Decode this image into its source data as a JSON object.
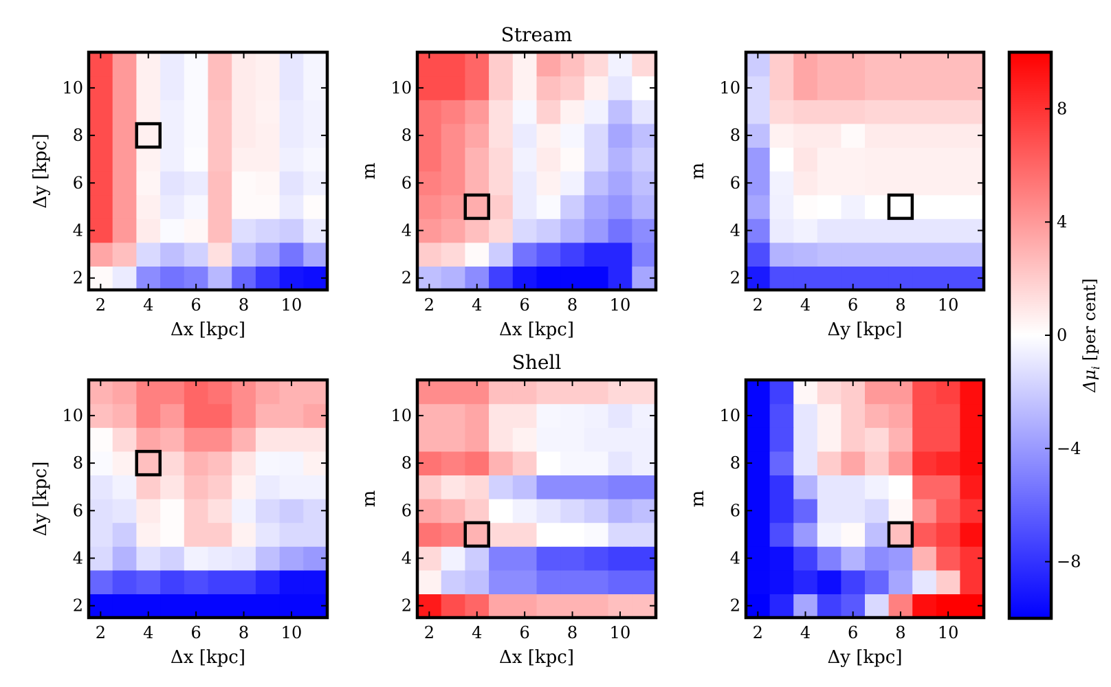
{
  "chart_data": [
    {
      "type": "heatmap",
      "title": "",
      "xlabel": "Δx [kpc]",
      "ylabel": "Δy [kpc]",
      "x_values": [
        2,
        3,
        4,
        5,
        6,
        7,
        8,
        9,
        10,
        11
      ],
      "y_values": [
        2,
        3,
        4,
        5,
        6,
        7,
        8,
        9,
        10,
        11
      ],
      "xticks": [
        2,
        4,
        6,
        8,
        10
      ],
      "yticks": [
        2,
        4,
        6,
        8,
        10
      ],
      "marker": {
        "x": 4,
        "y": 8
      },
      "z": [
        [
          0.2,
          -0.8,
          -4.5,
          -5.5,
          -5.0,
          -2.8,
          -6.0,
          -7.8,
          -9.2,
          -9.5
        ],
        [
          3.5,
          2.5,
          -1.5,
          -2.5,
          -1.8,
          1.2,
          -2.5,
          -3.6,
          -5.4,
          -3.4
        ],
        [
          7.0,
          4.0,
          0.8,
          -0.2,
          0.3,
          2.6,
          -1.3,
          -1.7,
          -2.0,
          -0.8
        ],
        [
          7.0,
          4.0,
          0.6,
          -0.8,
          -0.3,
          2.6,
          0.2,
          0.2,
          -0.8,
          0.1
        ],
        [
          7.0,
          4.0,
          0.4,
          -1.1,
          -0.8,
          2.6,
          0.2,
          0.3,
          -1.1,
          -0.6
        ],
        [
          7.0,
          4.0,
          0.5,
          -0.6,
          -0.1,
          2.4,
          0.6,
          0.6,
          -0.6,
          -0.3
        ],
        [
          7.0,
          4.0,
          0.6,
          -0.6,
          -0.2,
          2.4,
          0.8,
          0.6,
          -0.8,
          -0.5
        ],
        [
          7.0,
          4.0,
          0.6,
          -0.6,
          -0.2,
          2.4,
          0.8,
          0.5,
          -0.8,
          -0.5
        ],
        [
          7.0,
          4.0,
          0.6,
          -0.8,
          -0.2,
          2.6,
          0.8,
          0.6,
          -1.0,
          -0.4
        ],
        [
          7.0,
          4.0,
          0.6,
          -0.8,
          -0.2,
          2.6,
          0.8,
          0.6,
          -1.0,
          -0.4
        ]
      ]
    },
    {
      "type": "heatmap",
      "title": "Stream",
      "xlabel": "Δx [kpc]",
      "ylabel": "m",
      "x_values": [
        2,
        3,
        4,
        5,
        6,
        7,
        8,
        9,
        10,
        11
      ],
      "y_values": [
        2,
        3,
        4,
        5,
        6,
        7,
        8,
        9,
        10,
        11
      ],
      "xticks": [
        2,
        4,
        6,
        8,
        10
      ],
      "yticks": [
        2,
        4,
        6,
        8,
        10
      ],
      "marker": {
        "x": 4,
        "y": 5
      },
      "z": [
        [
          -2.5,
          -3.0,
          -4.5,
          -7.5,
          -9.2,
          -9.8,
          -9.8,
          -9.8,
          -8.5,
          -3.5
        ],
        [
          2.0,
          1.5,
          0.2,
          -2.0,
          -5.5,
          -6.5,
          -7.5,
          -8.5,
          -8.5,
          -5.0
        ],
        [
          4.0,
          3.5,
          2.5,
          1.5,
          -1.5,
          -2.0,
          -3.0,
          -4.0,
          -5.5,
          -4.5
        ],
        [
          4.5,
          4.0,
          3.2,
          2.0,
          -0.8,
          -0.2,
          -2.0,
          -3.5,
          -4.2,
          -3.0
        ],
        [
          5.0,
          4.5,
          3.0,
          1.5,
          -0.8,
          0.5,
          -0.5,
          -2.5,
          -3.5,
          -2.5
        ],
        [
          5.5,
          4.5,
          3.0,
          1.5,
          -0.5,
          0.8,
          0.2,
          -1.5,
          -3.0,
          -2.0
        ],
        [
          5.5,
          4.5,
          3.5,
          1.2,
          -0.8,
          0.5,
          -0.3,
          -1.5,
          -3.5,
          -2.5
        ],
        [
          5.5,
          5.0,
          4.0,
          1.2,
          -0.3,
          1.8,
          0.5,
          -0.5,
          -2.5,
          -1.0
        ],
        [
          7.0,
          7.0,
          6.0,
          2.0,
          0.5,
          2.5,
          2.0,
          0.6,
          -1.0,
          0.0
        ],
        [
          7.0,
          7.0,
          6.0,
          2.0,
          0.5,
          3.5,
          2.5,
          1.5,
          -0.5,
          1.5
        ]
      ]
    },
    {
      "type": "heatmap",
      "title": "",
      "xlabel": "Δy [kpc]",
      "ylabel": "m",
      "x_values": [
        2,
        3,
        4,
        5,
        6,
        7,
        8,
        9,
        10,
        11
      ],
      "y_values": [
        2,
        3,
        4,
        5,
        6,
        7,
        8,
        9,
        10,
        11
      ],
      "xticks": [
        2,
        4,
        6,
        8,
        10
      ],
      "yticks": [
        2,
        4,
        6,
        8,
        10
      ],
      "marker": {
        "x": 8,
        "y": 5
      },
      "z": [
        [
          -9.0,
          -7.0,
          -7.0,
          -7.0,
          -7.0,
          -7.0,
          -7.0,
          -7.0,
          -7.0,
          -7.0
        ],
        [
          -7.0,
          -3.0,
          -2.8,
          -2.5,
          -2.5,
          -2.5,
          -2.5,
          -2.5,
          -2.5,
          -2.5
        ],
        [
          -5.0,
          -0.8,
          -0.5,
          -1.0,
          -1.0,
          -1.0,
          -1.0,
          -1.0,
          -1.0,
          -1.0
        ],
        [
          -3.5,
          -0.6,
          0.1,
          0.0,
          -0.5,
          0.0,
          0.0,
          0.0,
          0.0,
          0.0
        ],
        [
          -4.0,
          -0.5,
          0.8,
          0.5,
          0.5,
          0.6,
          0.6,
          0.6,
          0.6,
          0.6
        ],
        [
          -4.0,
          0.0,
          1.0,
          0.5,
          0.5,
          0.6,
          0.6,
          0.6,
          0.6,
          0.6
        ],
        [
          -2.5,
          0.5,
          0.8,
          0.8,
          0.2,
          0.8,
          0.8,
          0.8,
          0.8,
          0.8
        ],
        [
          -1.5,
          1.5,
          1.8,
          1.8,
          1.8,
          1.6,
          1.6,
          1.6,
          1.6,
          1.6
        ],
        [
          -1.5,
          2.0,
          3.5,
          3.0,
          3.0,
          2.6,
          2.6,
          2.6,
          2.6,
          2.6
        ],
        [
          -2.0,
          2.0,
          3.5,
          3.0,
          3.0,
          2.6,
          2.6,
          2.6,
          2.6,
          2.6
        ]
      ]
    },
    {
      "type": "heatmap",
      "title": "",
      "xlabel": "Δx [kpc]",
      "ylabel": "Δy [kpc]",
      "x_values": [
        2,
        3,
        4,
        5,
        6,
        7,
        8,
        9,
        10,
        11
      ],
      "y_values": [
        2,
        3,
        4,
        5,
        6,
        7,
        8,
        9,
        10,
        11
      ],
      "xticks": [
        2,
        4,
        6,
        8,
        10
      ],
      "yticks": [
        2,
        4,
        6,
        8,
        10
      ],
      "marker": {
        "x": 4,
        "y": 8
      },
      "z": [
        [
          -9.8,
          -9.8,
          -9.8,
          -9.8,
          -9.8,
          -9.8,
          -9.8,
          -9.8,
          -9.8,
          -9.8
        ],
        [
          -6.0,
          -7.0,
          -6.5,
          -7.5,
          -7.0,
          -7.5,
          -7.5,
          -8.5,
          -9.5,
          -9.5
        ],
        [
          -1.5,
          -3.0,
          -1.2,
          -1.8,
          -0.5,
          -0.8,
          -1.0,
          -2.5,
          -3.5,
          -4.0
        ],
        [
          -1.2,
          -2.0,
          0.5,
          0.1,
          2.0,
          2.0,
          0.5,
          -1.0,
          -1.5,
          -1.5
        ],
        [
          -1.2,
          -1.0,
          0.8,
          0.1,
          2.0,
          1.2,
          -0.5,
          -1.5,
          -2.0,
          -1.5
        ],
        [
          -1.0,
          -0.5,
          2.0,
          1.0,
          2.5,
          2.0,
          0.5,
          -0.8,
          -0.5,
          -0.5
        ],
        [
          -0.2,
          0.5,
          2.5,
          1.5,
          3.0,
          2.5,
          1.0,
          -0.3,
          -0.4,
          0.5
        ],
        [
          0.1,
          1.5,
          3.5,
          3.0,
          4.5,
          4.5,
          3.0,
          1.0,
          1.0,
          1.0
        ],
        [
          2.5,
          3.0,
          5.0,
          4.0,
          6.0,
          6.0,
          4.5,
          3.0,
          3.0,
          3.5
        ],
        [
          3.0,
          3.5,
          5.0,
          5.0,
          6.0,
          5.5,
          4.5,
          3.5,
          3.0,
          3.0
        ]
      ]
    },
    {
      "type": "heatmap",
      "title": "Shell",
      "xlabel": "Δx [kpc]",
      "ylabel": "m",
      "x_values": [
        2,
        3,
        4,
        5,
        6,
        7,
        8,
        9,
        10,
        11
      ],
      "y_values": [
        2,
        3,
        4,
        5,
        6,
        7,
        8,
        9,
        10,
        11
      ],
      "xticks": [
        2,
        4,
        6,
        8,
        10
      ],
      "yticks": [
        2,
        4,
        6,
        8,
        10
      ],
      "marker": {
        "x": 4,
        "y": 5
      },
      "z": [
        [
          9.0,
          7.0,
          6.0,
          3.5,
          3.5,
          3.0,
          3.0,
          3.0,
          2.5,
          2.5
        ],
        [
          0.5,
          -2.0,
          -2.5,
          -4.5,
          -4.5,
          -5.5,
          -5.5,
          -5.5,
          -6.0,
          -6.0
        ],
        [
          1.5,
          -0.5,
          -2.0,
          -5.0,
          -5.0,
          -6.5,
          -6.5,
          -7.0,
          -7.5,
          -7.5
        ],
        [
          5.5,
          5.0,
          3.0,
          1.5,
          1.5,
          0.0,
          0.0,
          -0.2,
          -1.5,
          -1.5
        ],
        [
          3.5,
          3.0,
          2.0,
          0.0,
          -0.5,
          -1.0,
          -1.5,
          -2.0,
          -3.0,
          -2.5
        ],
        [
          2.0,
          1.0,
          1.5,
          -1.8,
          -2.5,
          -4.5,
          -4.5,
          -4.5,
          -5.0,
          -5.0
        ],
        [
          5.5,
          5.0,
          5.5,
          3.0,
          2.0,
          0.0,
          -0.3,
          -0.3,
          -1.0,
          -0.6
        ],
        [
          3.0,
          3.0,
          3.5,
          1.0,
          0.5,
          -0.4,
          -0.4,
          -0.6,
          -0.6,
          -0.6
        ],
        [
          3.0,
          3.0,
          3.5,
          1.0,
          1.0,
          -0.3,
          -0.4,
          -0.5,
          -1.0,
          -0.5
        ],
        [
          4.5,
          4.5,
          4.5,
          2.5,
          2.5,
          2.0,
          2.0,
          2.0,
          1.5,
          1.5
        ]
      ]
    },
    {
      "type": "heatmap",
      "title": "",
      "xlabel": "Δy [kpc]",
      "ylabel": "m",
      "x_values": [
        2,
        3,
        4,
        5,
        6,
        7,
        8,
        9,
        10,
        11
      ],
      "y_values": [
        2,
        3,
        4,
        5,
        6,
        7,
        8,
        9,
        10,
        11
      ],
      "xticks": [
        2,
        4,
        6,
        8,
        10
      ],
      "yticks": [
        2,
        4,
        6,
        8,
        10
      ],
      "marker": {
        "x": 8,
        "y": 5
      },
      "z": [
        [
          -10,
          -8.5,
          -3.5,
          -7.5,
          -6.5,
          -1.5,
          5.0,
          9.5,
          10.0,
          10.0
        ],
        [
          -9.8,
          -9.5,
          -8.5,
          -9.5,
          -7.5,
          -6.0,
          -3.5,
          -1.0,
          2.0,
          8.0
        ],
        [
          -9.8,
          -9.5,
          -7.5,
          -5.0,
          -3.0,
          -4.5,
          -4.0,
          3.0,
          6.5,
          8.0
        ],
        [
          -9.8,
          -7.0,
          -4.0,
          -0.5,
          0.2,
          -2.5,
          2.5,
          6.5,
          7.5,
          9.5
        ],
        [
          -9.8,
          -8.0,
          -6.0,
          -1.0,
          -1.0,
          -1.5,
          0.3,
          4.5,
          6.5,
          8.0
        ],
        [
          -9.8,
          -8.0,
          -3.0,
          -1.0,
          -1.0,
          -0.5,
          0.0,
          6.0,
          6.0,
          9.0
        ],
        [
          -9.8,
          -6.0,
          -1.0,
          2.0,
          3.5,
          2.0,
          4.0,
          8.0,
          8.5,
          9.5
        ],
        [
          -9.8,
          -7.0,
          -1.0,
          0.5,
          2.0,
          1.5,
          3.0,
          7.0,
          7.0,
          9.5
        ],
        [
          -9.8,
          -7.0,
          -1.0,
          0.5,
          2.0,
          3.0,
          3.5,
          7.0,
          7.0,
          9.5
        ],
        [
          -9.8,
          -7.5,
          0.3,
          1.5,
          2.0,
          4.0,
          4.0,
          7.0,
          7.5,
          9.5
        ]
      ]
    }
  ],
  "colorbar": {
    "label": "Δμ",
    "label_sub": "i",
    "label_unit": " [per cent]",
    "vmin": -10,
    "vmax": 10,
    "ticks": [
      -8,
      -4,
      0,
      4,
      8
    ],
    "tick_labels": [
      "−8",
      "−4",
      "0",
      "4",
      "8"
    ],
    "colors": {
      "low": "#0000ff",
      "mid": "#ffffff",
      "high": "#ff0000"
    }
  }
}
